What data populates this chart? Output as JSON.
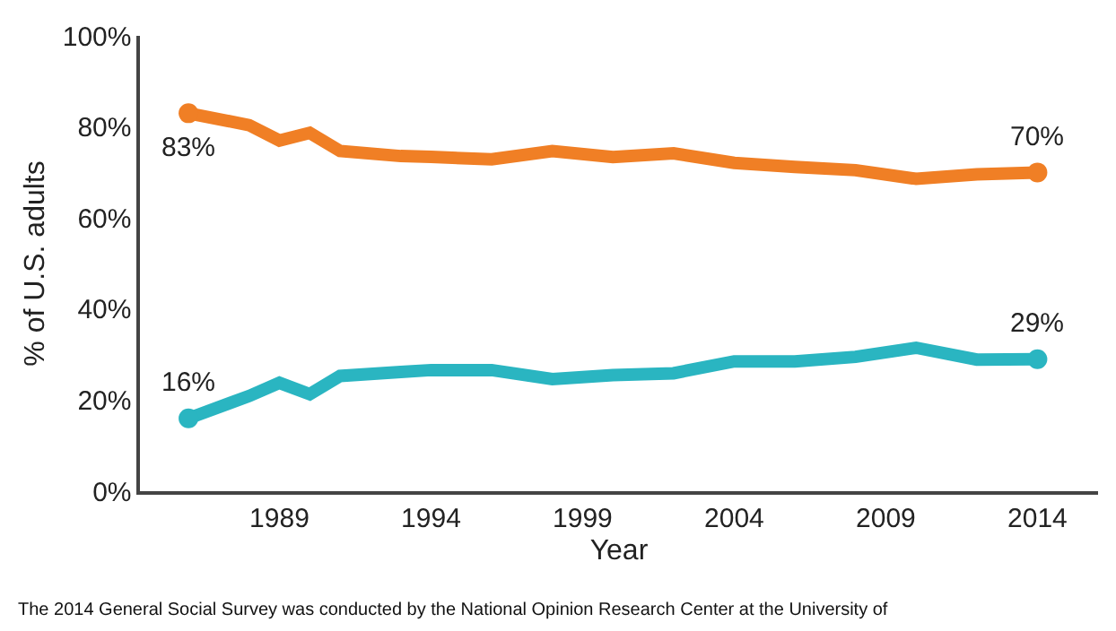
{
  "chart_data": {
    "type": "line",
    "xlabel": "Year",
    "ylabel": "% of U.S. adults",
    "x": [
      1986,
      1988,
      1989,
      1990,
      1991,
      1993,
      1994,
      1996,
      1998,
      2000,
      2002,
      2004,
      2006,
      2008,
      2010,
      2012,
      2014
    ],
    "series": [
      {
        "color": "#f07f25",
        "values": [
          83,
          80.4,
          77,
          78.7,
          74.7,
          73.6,
          73.4,
          72.9,
          74.7,
          73.4,
          74.2,
          72.1,
          71.2,
          70.5,
          68.6,
          69.6,
          70
        ],
        "value_labels": [
          "83%",
          null,
          null,
          null,
          null,
          null,
          null,
          null,
          null,
          null,
          null,
          null,
          null,
          null,
          null,
          null,
          "70%"
        ]
      },
      {
        "color": "#2ab5c1",
        "values": [
          16,
          20.9,
          23.8,
          21.3,
          25.3,
          26.2,
          26.6,
          26.6,
          24.6,
          25.5,
          25.9,
          28.5,
          28.5,
          29.5,
          31.5,
          28.9,
          29
        ],
        "value_labels": [
          "16%",
          null,
          null,
          null,
          null,
          null,
          null,
          null,
          null,
          null,
          null,
          null,
          null,
          null,
          null,
          null,
          "29%"
        ]
      }
    ],
    "xlim": [
      1984.4,
      2016
    ],
    "xticks": [
      1989,
      1994,
      1999,
      2004,
      2009,
      2014
    ],
    "ylim": [
      0,
      100
    ],
    "yticks": [
      {
        "value": 0,
        "label": "0%"
      },
      {
        "value": 20,
        "label": "20%"
      },
      {
        "value": 40,
        "label": "40%"
      },
      {
        "value": 60,
        "label": "60%"
      },
      {
        "value": 80,
        "label": "80%"
      },
      {
        "value": 100,
        "label": "100%"
      }
    ],
    "marker": "none",
    "line_style": "solid",
    "annotations": [
      "The 2014 General Social Survey was conducted by the National Opinion Research Center at the University of"
    ]
  }
}
